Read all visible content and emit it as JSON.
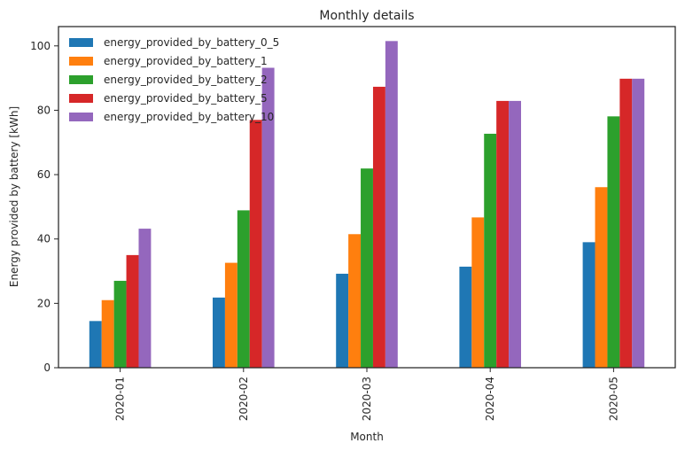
{
  "chart_data": {
    "type": "bar",
    "title": "Monthly details",
    "xlabel": "Month",
    "ylabel": "Energy provided by battery [kWh]",
    "categories": [
      "2020-01",
      "2020-02",
      "2020-03",
      "2020-04",
      "2020-05"
    ],
    "ylim": [
      0,
      106
    ],
    "yticks": [
      0,
      20,
      40,
      60,
      80,
      100
    ],
    "grid": false,
    "legend_position": "top-left",
    "series": [
      {
        "name": "energy_provided_by_battery_0_5",
        "color": "#1f77b4",
        "values": [
          14.5,
          21.8,
          29.2,
          31.4,
          39.0
        ]
      },
      {
        "name": "energy_provided_by_battery_1",
        "color": "#ff7f0e",
        "values": [
          21.0,
          32.6,
          41.5,
          46.7,
          56.1
        ]
      },
      {
        "name": "energy_provided_by_battery_2",
        "color": "#2ca02c",
        "values": [
          27.0,
          48.9,
          61.9,
          72.7,
          78.1
        ]
      },
      {
        "name": "energy_provided_by_battery_5",
        "color": "#d62728",
        "values": [
          35.0,
          77.0,
          87.3,
          82.9,
          89.8
        ]
      },
      {
        "name": "energy_provided_by_battery_10",
        "color": "#9467bd",
        "values": [
          43.2,
          93.2,
          101.5,
          82.9,
          89.8
        ]
      }
    ]
  }
}
